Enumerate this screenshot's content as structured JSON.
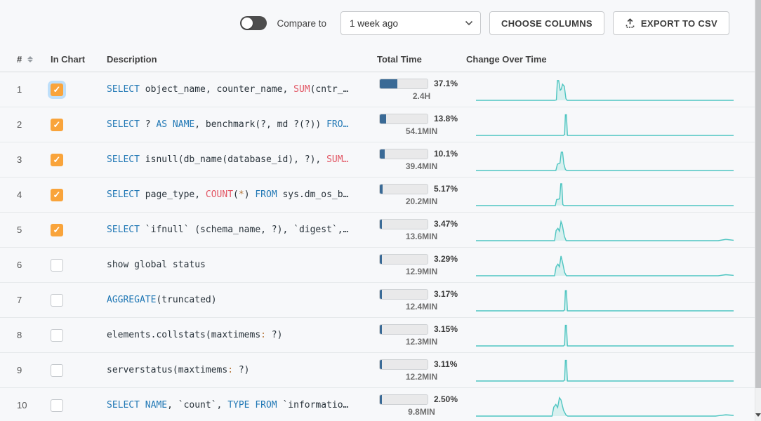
{
  "toolbar": {
    "compare_label": "Compare to",
    "compare_selected": "1 week ago",
    "choose_columns_label": "CHOOSE COLUMNS",
    "export_csv_label": "EXPORT TO CSV"
  },
  "table": {
    "headers": {
      "num": "#",
      "in_chart": "In Chart",
      "description": "Description",
      "total_time": "Total Time",
      "change_over_time": "Change Over Time"
    },
    "rows": [
      {
        "num": "1",
        "checked": true,
        "glow": true,
        "sql": [
          [
            "kw",
            "SELECT"
          ],
          [
            "tx",
            " object_name, counter_name, "
          ],
          [
            "fn",
            "SUM"
          ],
          [
            "tx",
            "(cntr_…"
          ]
        ],
        "percent": "37.1%",
        "fill": 37.1,
        "time": "2.4H",
        "spark": [
          [
            0,
            0
          ],
          [
            0.305,
            0
          ],
          [
            0.312,
            0.02
          ],
          [
            0.316,
            0.88
          ],
          [
            0.321,
            0.88
          ],
          [
            0.327,
            0.45
          ],
          [
            0.331,
            0.5
          ],
          [
            0.336,
            0.72
          ],
          [
            0.343,
            0.62
          ],
          [
            0.349,
            0.08
          ],
          [
            0.354,
            0
          ],
          [
            1,
            0
          ]
        ]
      },
      {
        "num": "2",
        "checked": true,
        "glow": false,
        "sql": [
          [
            "kw",
            "SELECT"
          ],
          [
            "tx",
            " ? "
          ],
          [
            "kw",
            "AS NAME"
          ],
          [
            "tx",
            ", benchmark(?, md ?(?)) "
          ],
          [
            "kw",
            "FRO…"
          ]
        ],
        "percent": "13.8%",
        "fill": 13.8,
        "time": "54.1MIN",
        "spark": [
          [
            0,
            0
          ],
          [
            0.34,
            0
          ],
          [
            0.344,
            0.05
          ],
          [
            0.347,
            0.92
          ],
          [
            0.351,
            0.92
          ],
          [
            0.355,
            0
          ],
          [
            1,
            0
          ]
        ]
      },
      {
        "num": "3",
        "checked": true,
        "glow": false,
        "sql": [
          [
            "kw",
            "SELECT"
          ],
          [
            "tx",
            " isnull(db_name(database_id), ?), "
          ],
          [
            "fn",
            "SUM…"
          ]
        ],
        "percent": "10.1%",
        "fill": 10.1,
        "time": "39.4MIN",
        "spark": [
          [
            0,
            0
          ],
          [
            0.31,
            0
          ],
          [
            0.316,
            0.28
          ],
          [
            0.326,
            0.33
          ],
          [
            0.331,
            0.82
          ],
          [
            0.336,
            0.82
          ],
          [
            0.341,
            0.3
          ],
          [
            0.347,
            0.05
          ],
          [
            0.352,
            0
          ],
          [
            1,
            0
          ]
        ]
      },
      {
        "num": "4",
        "checked": true,
        "glow": false,
        "sql": [
          [
            "kw",
            "SELECT"
          ],
          [
            "tx",
            " page_type, "
          ],
          [
            "fn",
            "COUNT"
          ],
          [
            "tx",
            "("
          ],
          [
            "op",
            "*"
          ],
          [
            "tx",
            ") "
          ],
          [
            "kw",
            "FROM"
          ],
          [
            "tx",
            " sys.dm_os_b…"
          ]
        ],
        "percent": "5.17%",
        "fill": 5.17,
        "time": "20.2MIN",
        "spark": [
          [
            0,
            0
          ],
          [
            0.308,
            0
          ],
          [
            0.313,
            0.27
          ],
          [
            0.325,
            0.3
          ],
          [
            0.329,
            0.97
          ],
          [
            0.333,
            0.97
          ],
          [
            0.337,
            0.05
          ],
          [
            0.341,
            0
          ],
          [
            1,
            0
          ]
        ]
      },
      {
        "num": "5",
        "checked": true,
        "glow": false,
        "sql": [
          [
            "kw",
            "SELECT"
          ],
          [
            "tx",
            " `ifnull` (schema_name, ?), `digest`,…"
          ]
        ],
        "percent": "3.47%",
        "fill": 3.47,
        "time": "13.6MIN",
        "spark": [
          [
            0,
            0
          ],
          [
            0.305,
            0
          ],
          [
            0.311,
            0.45
          ],
          [
            0.318,
            0.55
          ],
          [
            0.324,
            0.42
          ],
          [
            0.33,
            0.85
          ],
          [
            0.335,
            0.7
          ],
          [
            0.343,
            0.2
          ],
          [
            0.35,
            0
          ],
          [
            0.94,
            0
          ],
          [
            0.97,
            0.06
          ],
          [
            1,
            0.02
          ]
        ]
      },
      {
        "num": "6",
        "checked": false,
        "glow": false,
        "sql": [
          [
            "tx",
            "show global status"
          ]
        ],
        "percent": "3.29%",
        "fill": 3.29,
        "time": "12.9MIN",
        "spark": [
          [
            0,
            0
          ],
          [
            0.305,
            0
          ],
          [
            0.311,
            0.4
          ],
          [
            0.318,
            0.52
          ],
          [
            0.324,
            0.4
          ],
          [
            0.33,
            0.88
          ],
          [
            0.336,
            0.6
          ],
          [
            0.344,
            0.15
          ],
          [
            0.351,
            0
          ],
          [
            0.94,
            0
          ],
          [
            0.97,
            0.05
          ],
          [
            1,
            0.02
          ]
        ]
      },
      {
        "num": "7",
        "checked": false,
        "glow": false,
        "sql": [
          [
            "kw",
            "AGGREGATE"
          ],
          [
            "tx",
            "(truncated)"
          ]
        ],
        "percent": "3.17%",
        "fill": 3.17,
        "time": "12.4MIN",
        "spark": [
          [
            0,
            0
          ],
          [
            0.34,
            0
          ],
          [
            0.344,
            0.05
          ],
          [
            0.347,
            0.9
          ],
          [
            0.351,
            0.9
          ],
          [
            0.355,
            0
          ],
          [
            1,
            0
          ]
        ]
      },
      {
        "num": "8",
        "checked": false,
        "glow": false,
        "sql": [
          [
            "tx",
            "elements.collstats(maxtimems"
          ],
          [
            "op",
            ":"
          ],
          [
            "tx",
            " ?)"
          ]
        ],
        "percent": "3.15%",
        "fill": 3.15,
        "time": "12.3MIN",
        "spark": [
          [
            0,
            0
          ],
          [
            0.34,
            0
          ],
          [
            0.344,
            0.05
          ],
          [
            0.347,
            0.92
          ],
          [
            0.351,
            0.92
          ],
          [
            0.355,
            0
          ],
          [
            1,
            0
          ]
        ]
      },
      {
        "num": "9",
        "checked": false,
        "glow": false,
        "sql": [
          [
            "tx",
            "serverstatus(maxtimems"
          ],
          [
            "op",
            ":"
          ],
          [
            "tx",
            " ?)"
          ]
        ],
        "percent": "3.11%",
        "fill": 3.11,
        "time": "12.2MIN",
        "spark": [
          [
            0,
            0
          ],
          [
            0.34,
            0
          ],
          [
            0.344,
            0.05
          ],
          [
            0.347,
            0.92
          ],
          [
            0.351,
            0.92
          ],
          [
            0.355,
            0
          ],
          [
            1,
            0
          ]
        ]
      },
      {
        "num": "10",
        "checked": false,
        "glow": false,
        "sql": [
          [
            "kw",
            "SELECT NAME"
          ],
          [
            "tx",
            ", `count`, "
          ],
          [
            "kw",
            "TYPE FROM"
          ],
          [
            "tx",
            " `informatio…"
          ]
        ],
        "percent": "2.50%",
        "fill": 2.5,
        "time": "9.8MIN",
        "spark": [
          [
            0,
            0
          ],
          [
            0.295,
            0
          ],
          [
            0.302,
            0.4
          ],
          [
            0.31,
            0.52
          ],
          [
            0.317,
            0.38
          ],
          [
            0.324,
            0.82
          ],
          [
            0.33,
            0.72
          ],
          [
            0.34,
            0.25
          ],
          [
            0.35,
            0.04
          ],
          [
            0.356,
            0
          ],
          [
            0.93,
            0
          ],
          [
            0.97,
            0.06
          ],
          [
            1,
            0.03
          ]
        ]
      }
    ]
  },
  "colors": {
    "spark_line": "#4ec5c1",
    "spark_fill": "#d8f0ef",
    "bar_fill": "#3a6a96",
    "checkbox_checked": "#f9a43b",
    "sql_keyword": "#2178b5",
    "sql_function": "#e25563",
    "sql_operator": "#b5773a"
  }
}
